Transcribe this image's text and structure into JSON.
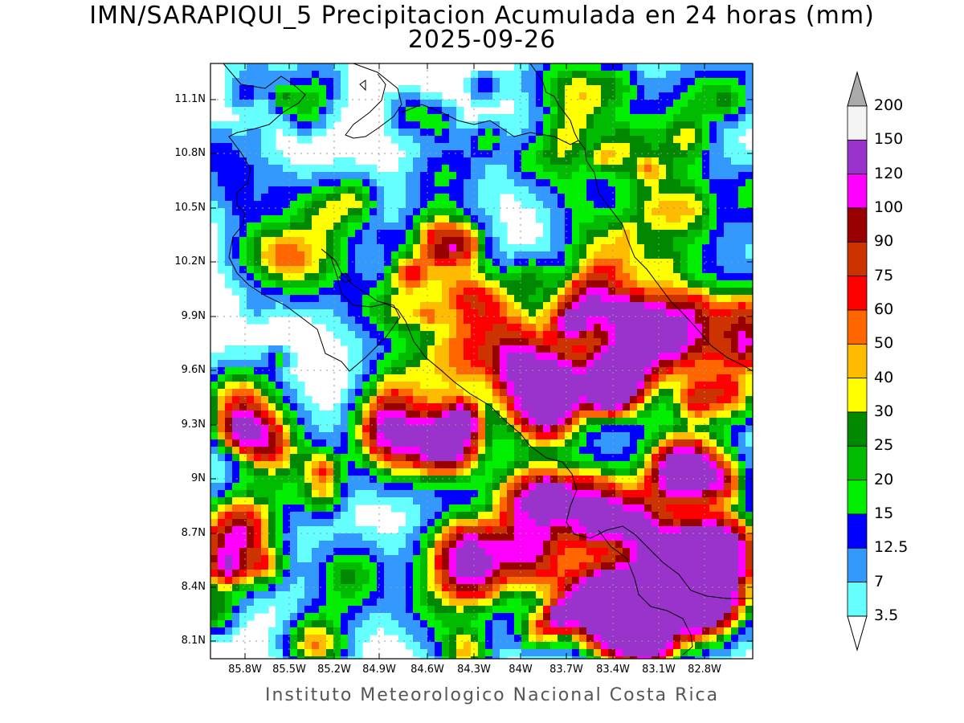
{
  "title": "IMN/SARAPIQUI_5 Precipitacion Acumulada en 24 horas (mm)",
  "date": "2025-09-26",
  "credit": "Instituto Meteorologico Nacional Costa Rica",
  "map": {
    "lat_ticks": [
      "11.1N",
      "10.8N",
      "10.5N",
      "10.2N",
      "9.9N",
      "9.6N",
      "9.3N",
      "9N",
      "8.7N",
      "8.4N",
      "8.1N"
    ],
    "lon_ticks": [
      "85.8W",
      "85.5W",
      "85.2W",
      "84.9W",
      "84.6W",
      "84.3W",
      "84W",
      "83.7W",
      "83.4W",
      "83.1W",
      "82.8W"
    ],
    "grid": true
  },
  "colorbar": {
    "labels": [
      "200",
      "150",
      "120",
      "100",
      "90",
      "75",
      "60",
      "50",
      "40",
      "30",
      "25",
      "20",
      "15",
      "12.5",
      "7",
      "3.5"
    ],
    "colors": [
      "#aaaaaa",
      "#f4f4f4",
      "#9933cc",
      "#ff00ff",
      "#990000",
      "#cc3300",
      "#ff0000",
      "#ff6600",
      "#ffbb00",
      "#ffff00",
      "#008800",
      "#00bb00",
      "#00ee00",
      "#0000ff",
      "#3399ff",
      "#66ffff",
      "#ffffff"
    ]
  }
}
